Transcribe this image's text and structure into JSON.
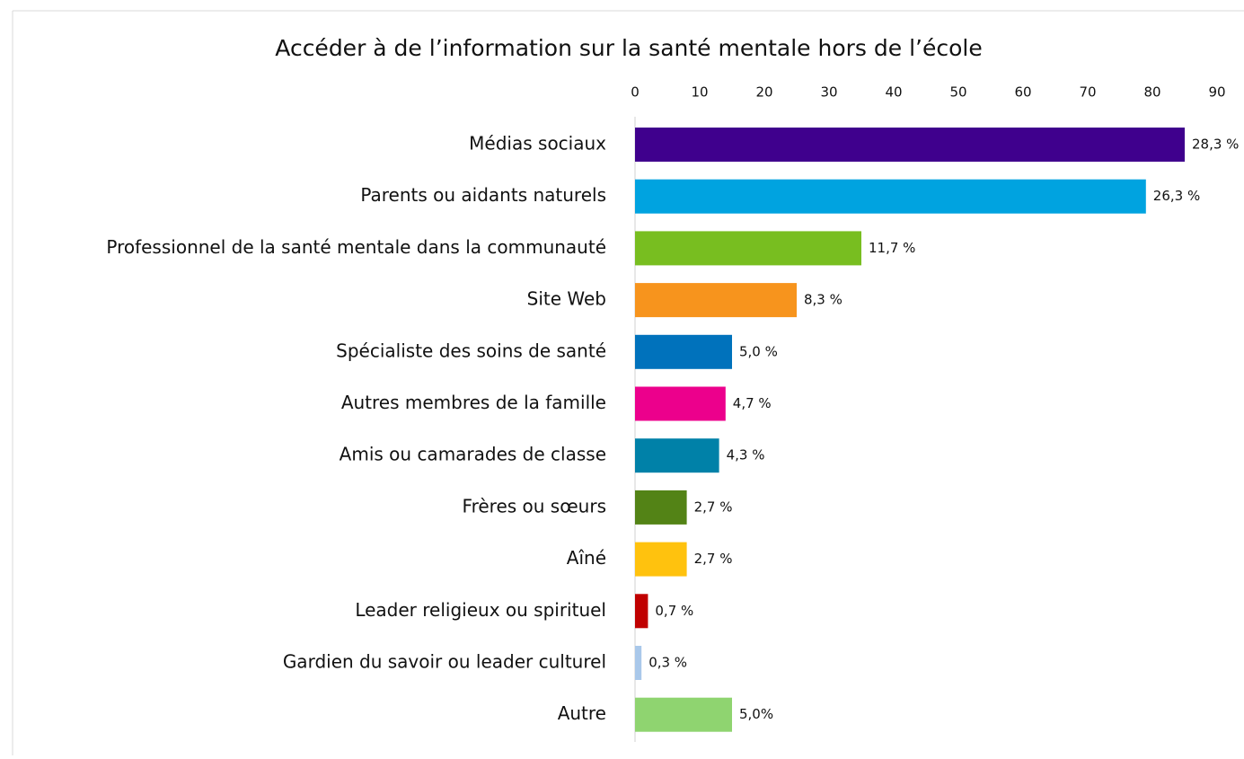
{
  "chart_data": {
    "type": "bar",
    "orientation": "horizontal",
    "title": "Accéder à de l’information sur la santé mentale hors de l’école",
    "categories": [
      "Médias sociaux",
      "Parents ou aidants naturels",
      "Professionnel de la santé mentale dans la communauté",
      "Site Web",
      "Spécialiste des soins de santé",
      "Autres membres de la famille",
      "Amis ou camarades de classe",
      "Frères ou sœurs",
      "Aîné",
      "Leader religieux ou spirituel",
      "Gardien du savoir ou leader culturel",
      "Autre"
    ],
    "values": [
      85,
      79,
      35,
      25,
      15,
      14,
      13,
      8,
      8,
      2,
      1,
      15
    ],
    "value_labels": [
      "28,3 %",
      "26,3 %",
      "11,7 %",
      "8,3 %",
      "5,0 %",
      "4,7 %",
      "4,3 %",
      "2,7 %",
      "2,7 %",
      "0,7 %",
      "0,3 %",
      "5,0%"
    ],
    "colors": [
      "#3f008d",
      "#00a3e0",
      "#78be20",
      "#f7941d",
      "#0072bc",
      "#ec008c",
      "#0081a8",
      "#538316",
      "#ffc20e",
      "#c00000",
      "#a9c8ea",
      "#8fd470"
    ],
    "xlim": [
      0,
      90
    ],
    "xticks": [
      0,
      10,
      20,
      30,
      40,
      50,
      60,
      70,
      80,
      90
    ],
    "grid": false
  }
}
